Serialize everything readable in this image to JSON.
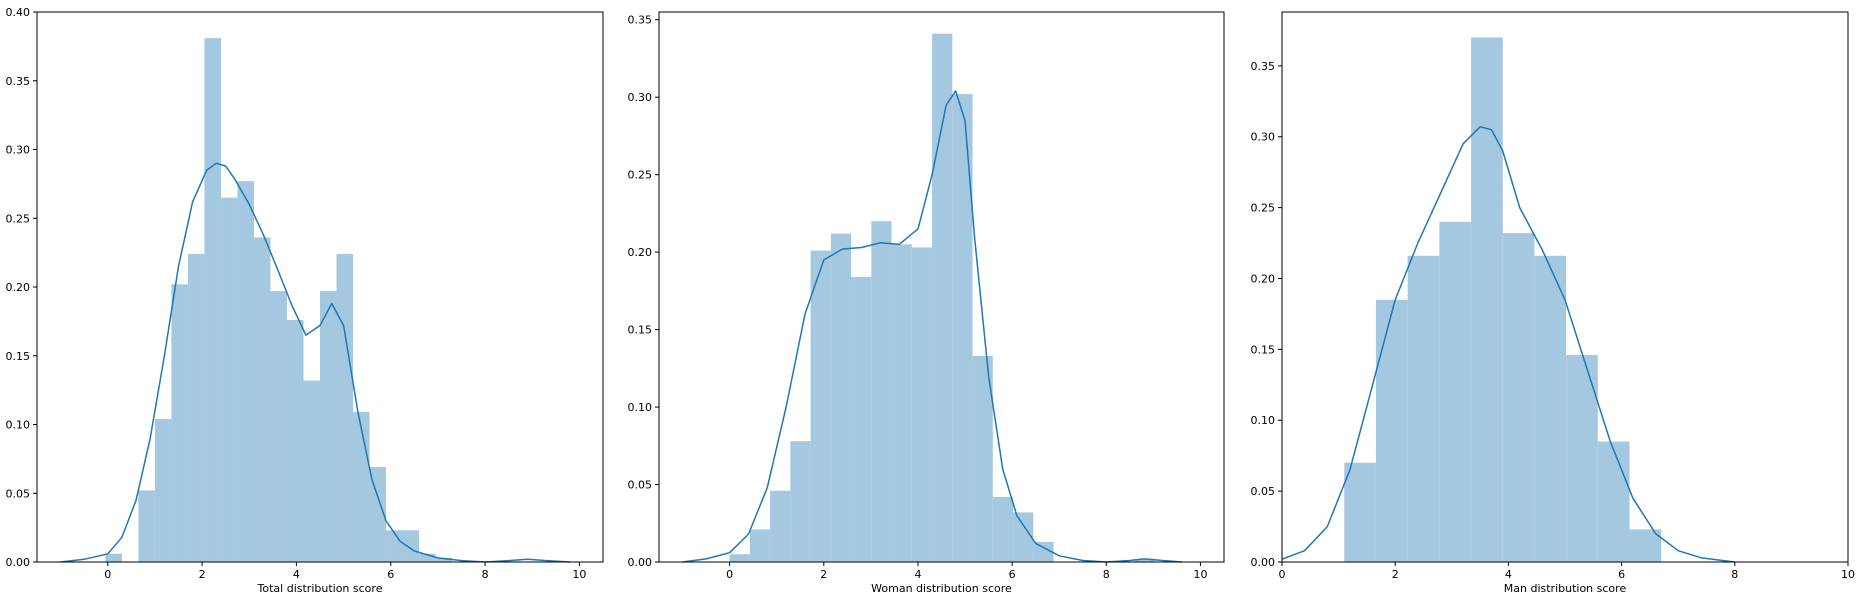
{
  "chart_data": [
    {
      "type": "bar",
      "xlabel": "Total distribution score",
      "ylabel": "",
      "xlim": [
        -1.5,
        10.5
      ],
      "ylim": [
        0,
        0.4
      ],
      "xticks": [
        0,
        2,
        4,
        6,
        8,
        10
      ],
      "yticks": [
        0.0,
        0.05,
        0.1,
        0.15,
        0.2,
        0.25,
        0.3,
        0.35,
        0.4
      ],
      "hist_color": "#a5c8e1",
      "kde_color": "#1f77b4",
      "bins": [
        {
          "x0": -0.05,
          "x1": 0.3,
          "density": 0.006
        },
        {
          "x0": 0.65,
          "x1": 1.0,
          "density": 0.052
        },
        {
          "x0": 1.0,
          "x1": 1.35,
          "density": 0.104
        },
        {
          "x0": 1.35,
          "x1": 1.7,
          "density": 0.202
        },
        {
          "x0": 1.7,
          "x1": 2.05,
          "density": 0.224
        },
        {
          "x0": 2.05,
          "x1": 2.4,
          "density": 0.381
        },
        {
          "x0": 2.4,
          "x1": 2.75,
          "density": 0.265
        },
        {
          "x0": 2.75,
          "x1": 3.1,
          "density": 0.277
        },
        {
          "x0": 3.1,
          "x1": 3.45,
          "density": 0.236
        },
        {
          "x0": 3.45,
          "x1": 3.8,
          "density": 0.197
        },
        {
          "x0": 3.8,
          "x1": 4.15,
          "density": 0.176
        },
        {
          "x0": 4.15,
          "x1": 4.5,
          "density": 0.132
        },
        {
          "x0": 4.5,
          "x1": 4.85,
          "density": 0.197
        },
        {
          "x0": 4.85,
          "x1": 5.2,
          "density": 0.224
        },
        {
          "x0": 5.2,
          "x1": 5.55,
          "density": 0.109
        },
        {
          "x0": 5.55,
          "x1": 5.9,
          "density": 0.069
        },
        {
          "x0": 5.9,
          "x1": 6.25,
          "density": 0.023
        },
        {
          "x0": 6.25,
          "x1": 6.6,
          "density": 0.023
        },
        {
          "x0": 6.6,
          "x1": 6.95,
          "density": 0.006
        },
        {
          "x0": 6.95,
          "x1": 7.3,
          "density": 0.003
        }
      ],
      "kde": {
        "x": [
          -1.0,
          -0.5,
          0.0,
          0.3,
          0.6,
          0.9,
          1.2,
          1.5,
          1.8,
          2.1,
          2.3,
          2.5,
          2.7,
          3.0,
          3.3,
          3.6,
          3.9,
          4.2,
          4.5,
          4.75,
          5.0,
          5.3,
          5.6,
          5.9,
          6.2,
          6.5,
          7.0,
          7.5,
          8.0,
          8.5,
          8.9,
          9.3,
          9.8
        ],
        "y": [
          0.0,
          0.002,
          0.006,
          0.018,
          0.045,
          0.09,
          0.15,
          0.215,
          0.262,
          0.285,
          0.29,
          0.288,
          0.278,
          0.26,
          0.238,
          0.213,
          0.187,
          0.165,
          0.172,
          0.188,
          0.172,
          0.11,
          0.06,
          0.03,
          0.015,
          0.008,
          0.003,
          0.001,
          0.0,
          0.001,
          0.002,
          0.001,
          0.0
        ]
      }
    },
    {
      "type": "bar",
      "xlabel": "Woman distribution score",
      "ylabel": "",
      "xlim": [
        -1.5,
        10.5
      ],
      "ylim": [
        0,
        0.355
      ],
      "xticks": [
        0,
        2,
        4,
        6,
        8,
        10
      ],
      "yticks": [
        0.0,
        0.05,
        0.1,
        0.15,
        0.2,
        0.25,
        0.3,
        0.35
      ],
      "hist_color": "#a5c8e1",
      "kde_color": "#1f77b4",
      "bins": [
        {
          "x0": 0.0,
          "x1": 0.43,
          "density": 0.005
        },
        {
          "x0": 0.43,
          "x1": 0.86,
          "density": 0.021
        },
        {
          "x0": 0.86,
          "x1": 1.29,
          "density": 0.046
        },
        {
          "x0": 1.29,
          "x1": 1.72,
          "density": 0.078
        },
        {
          "x0": 1.72,
          "x1": 2.15,
          "density": 0.201
        },
        {
          "x0": 2.15,
          "x1": 2.58,
          "density": 0.212
        },
        {
          "x0": 2.58,
          "x1": 3.01,
          "density": 0.184
        },
        {
          "x0": 3.01,
          "x1": 3.44,
          "density": 0.22
        },
        {
          "x0": 3.44,
          "x1": 3.87,
          "density": 0.205
        },
        {
          "x0": 3.87,
          "x1": 4.3,
          "density": 0.203
        },
        {
          "x0": 4.3,
          "x1": 4.73,
          "density": 0.341
        },
        {
          "x0": 4.73,
          "x1": 5.16,
          "density": 0.302
        },
        {
          "x0": 5.16,
          "x1": 5.59,
          "density": 0.133
        },
        {
          "x0": 5.59,
          "x1": 6.02,
          "density": 0.042
        },
        {
          "x0": 6.02,
          "x1": 6.45,
          "density": 0.032
        },
        {
          "x0": 6.45,
          "x1": 6.88,
          "density": 0.013
        },
        {
          "x0": 8.6,
          "x1": 9.03,
          "density": 0.002
        }
      ],
      "kde": {
        "x": [
          -1.0,
          -0.5,
          0.0,
          0.4,
          0.8,
          1.2,
          1.6,
          2.0,
          2.4,
          2.8,
          3.2,
          3.6,
          4.0,
          4.3,
          4.6,
          4.8,
          5.0,
          5.2,
          5.5,
          5.8,
          6.1,
          6.5,
          7.0,
          7.5,
          8.0,
          8.5,
          8.8,
          9.2,
          9.6
        ],
        "y": [
          0.0,
          0.002,
          0.006,
          0.018,
          0.048,
          0.1,
          0.16,
          0.195,
          0.202,
          0.203,
          0.206,
          0.205,
          0.215,
          0.25,
          0.295,
          0.304,
          0.285,
          0.21,
          0.12,
          0.06,
          0.03,
          0.012,
          0.004,
          0.001,
          0.0,
          0.001,
          0.002,
          0.001,
          0.0
        ]
      }
    },
    {
      "type": "bar",
      "xlabel": "Man distribution score",
      "ylabel": "",
      "xlim": [
        0,
        10
      ],
      "ylim": [
        0,
        0.388
      ],
      "xticks": [
        0,
        2,
        4,
        6,
        8,
        10
      ],
      "yticks": [
        0.0,
        0.05,
        0.1,
        0.15,
        0.2,
        0.25,
        0.3,
        0.35
      ],
      "hist_color": "#a5c8e1",
      "kde_color": "#1f77b4",
      "bins": [
        {
          "x0": 1.1,
          "x1": 1.66,
          "density": 0.07
        },
        {
          "x0": 1.66,
          "x1": 2.22,
          "density": 0.185
        },
        {
          "x0": 2.22,
          "x1": 2.78,
          "density": 0.216
        },
        {
          "x0": 2.78,
          "x1": 3.34,
          "density": 0.24
        },
        {
          "x0": 3.34,
          "x1": 3.9,
          "density": 0.37
        },
        {
          "x0": 3.9,
          "x1": 4.46,
          "density": 0.232
        },
        {
          "x0": 4.46,
          "x1": 5.02,
          "density": 0.216
        },
        {
          "x0": 5.02,
          "x1": 5.58,
          "density": 0.146
        },
        {
          "x0": 5.58,
          "x1": 6.14,
          "density": 0.085
        },
        {
          "x0": 6.14,
          "x1": 6.7,
          "density": 0.023
        }
      ],
      "kde": {
        "x": [
          0.0,
          0.4,
          0.8,
          1.2,
          1.6,
          2.0,
          2.4,
          2.8,
          3.2,
          3.5,
          3.7,
          3.9,
          4.2,
          4.6,
          5.0,
          5.4,
          5.8,
          6.2,
          6.6,
          7.0,
          7.4,
          7.8,
          8.0
        ],
        "y": [
          0.002,
          0.008,
          0.025,
          0.065,
          0.125,
          0.185,
          0.225,
          0.26,
          0.295,
          0.307,
          0.305,
          0.29,
          0.25,
          0.22,
          0.185,
          0.135,
          0.085,
          0.045,
          0.02,
          0.008,
          0.003,
          0.001,
          0.0
        ]
      }
    }
  ]
}
